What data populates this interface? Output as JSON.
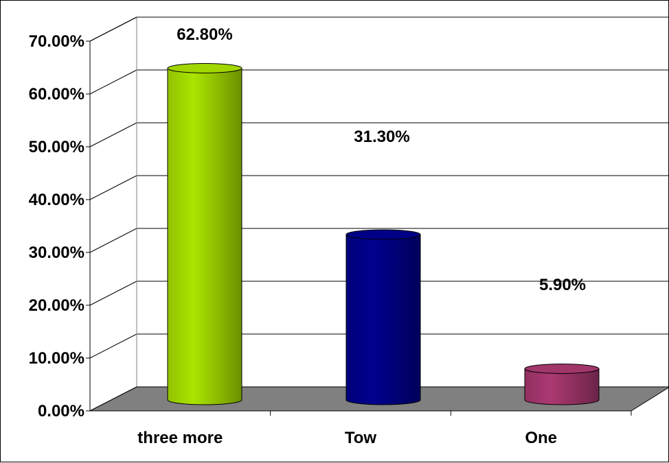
{
  "chart_data": {
    "type": "bar",
    "style": "3d-cylinder",
    "categories": [
      "three more",
      "Tow",
      "One"
    ],
    "values": [
      62.8,
      31.3,
      5.9
    ],
    "data_labels": [
      "62.80%",
      "31.30%",
      "5.90%"
    ],
    "ylim": [
      0,
      70
    ],
    "ytick_labels": [
      "0.00%",
      "10.00%",
      "20.00%",
      "30.00%",
      "40.00%",
      "50.00%",
      "60.00%",
      "70.00%"
    ],
    "grid": true,
    "legend": "none",
    "colors": [
      "#99CC00",
      "#000080",
      "#993366"
    ],
    "floor_color": "#808080"
  }
}
